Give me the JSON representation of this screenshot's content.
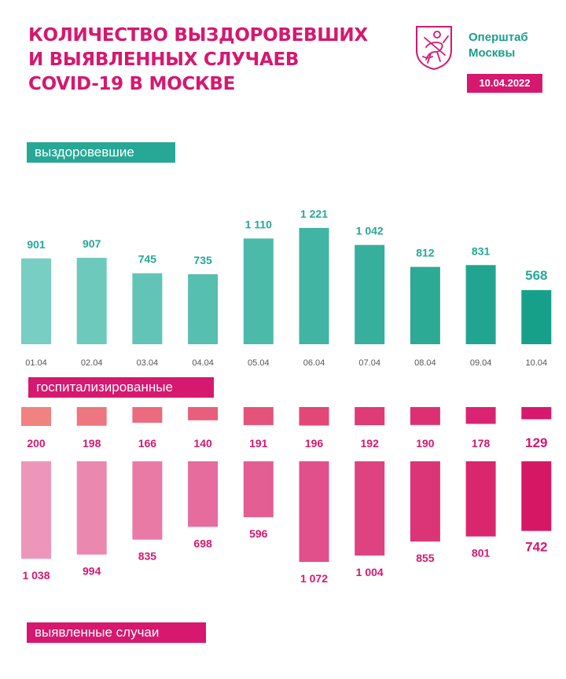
{
  "title": {
    "line1": "КОЛИЧЕСТВО ВЫЗДОРОВЕВШИХ",
    "line2": "И ВЫЯВЛЕННЫХ СЛУЧАЕВ",
    "line3": "COVID-19 В МОСКВЕ"
  },
  "brand": {
    "line1": "Оперштаб",
    "line2": "Москвы"
  },
  "date": "10.04.2022",
  "colors": {
    "teal": "#27a897",
    "pink": "#d6186f",
    "logo": "#d6186f"
  },
  "chart_data": [
    {
      "type": "bar",
      "title": "выздоровевшие",
      "categories": [
        "01.04",
        "02.04",
        "03.04",
        "04.04",
        "05.04",
        "06.04",
        "07.04",
        "08.04",
        "09.04",
        "10.04"
      ],
      "values": [
        901,
        907,
        745,
        735,
        1110,
        1221,
        1042,
        812,
        831,
        568
      ],
      "labels": [
        "901",
        "907",
        "745",
        "735",
        "1 110",
        "1 221",
        "1 042",
        "812",
        "831",
        "568"
      ]
    },
    {
      "type": "bar",
      "title": "госпитализированные",
      "categories": [
        "01.04",
        "02.04",
        "03.04",
        "04.04",
        "05.04",
        "06.04",
        "07.04",
        "08.04",
        "09.04",
        "10.04"
      ],
      "values": [
        200,
        198,
        166,
        140,
        191,
        196,
        192,
        190,
        178,
        129
      ],
      "labels": [
        "200",
        "198",
        "166",
        "140",
        "191",
        "196",
        "192",
        "190",
        "178",
        "129"
      ]
    },
    {
      "type": "bar",
      "title": "выявленные случаи",
      "categories": [
        "01.04",
        "02.04",
        "03.04",
        "04.04",
        "05.04",
        "06.04",
        "07.04",
        "08.04",
        "09.04",
        "10.04"
      ],
      "values": [
        1038,
        994,
        835,
        698,
        596,
        1072,
        1004,
        855,
        801,
        742
      ],
      "labels": [
        "1 038",
        "994",
        "835",
        "698",
        "596",
        "1 072",
        "1 004",
        "855",
        "801",
        "742"
      ]
    }
  ]
}
